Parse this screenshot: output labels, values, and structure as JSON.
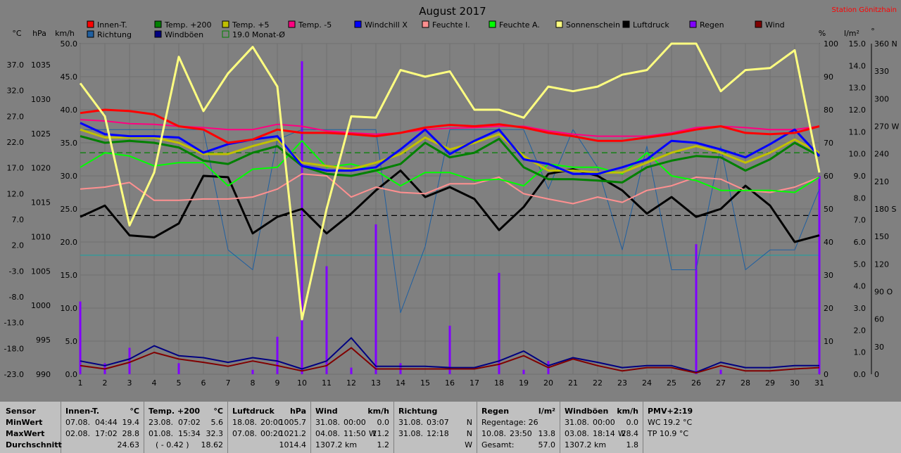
{
  "title": "August 2017",
  "station": "Station Gönitzhain",
  "units": {
    "temp": "°C",
    "press": "hPa",
    "speed": "km/h",
    "pct": "%",
    "rain": "l/m²",
    "deg": "°"
  },
  "legend": [
    {
      "label": "Innen-T.",
      "color": "#ff0000"
    },
    {
      "label": "Temp. +200",
      "color": "#008000"
    },
    {
      "label": "Temp. +5",
      "color": "#c0c000"
    },
    {
      "label": "Temp. -5",
      "color": "#ff0080"
    },
    {
      "label": "Windchill X",
      "color": "#0000ff"
    },
    {
      "label": "Feuchte I.",
      "color": "#ff9090"
    },
    {
      "label": "Feuchte A.",
      "color": "#00ff00"
    },
    {
      "label": "Sonnenschein",
      "color": "#ffff80"
    },
    {
      "label": "Luftdruck",
      "color": "#000000"
    },
    {
      "label": "Regen",
      "color": "#8000ff"
    },
    {
      "label": "Wind",
      "color": "#800000"
    },
    {
      "label": "Richtung",
      "color": "#1f5fa0"
    },
    {
      "label": "Windböen",
      "color": "#000080"
    },
    {
      "label": "19.0 Monat-Ø",
      "color": "#008000"
    }
  ],
  "axes": {
    "kmh_ticks": [
      "50.0",
      "45.0",
      "40.0",
      "35.0",
      "30.0",
      "25.0",
      "20.0",
      "15.0",
      "10.0",
      "5.0",
      "0.0"
    ],
    "temp_ticks": [
      "37.0",
      "32.0",
      "27.0",
      "22.0",
      "17.0",
      "12.0",
      "7.0",
      "2.0",
      "-3.0",
      "-8.0",
      "-13.0",
      "-18.0",
      "-23.0"
    ],
    "hpa_ticks": [
      "1035",
      "1030",
      "1025",
      "1020",
      "1015",
      "1010",
      "1005",
      "1000",
      "995",
      "990"
    ],
    "pct_ticks": [
      "100",
      "90",
      "80",
      "70",
      "60",
      "50",
      "40",
      "30",
      "20",
      "10",
      "0"
    ],
    "rain_ticks": [
      "15.0",
      "14.0",
      "13.0",
      "12.0",
      "11.0",
      "10.0",
      "9.0",
      "8.0",
      "7.0",
      "6.0",
      "5.0",
      "4.0",
      "3.0",
      "2.0",
      "1.0",
      "0.0"
    ],
    "dir_ticks": [
      "360 N",
      "330",
      "300",
      "270 W",
      "240",
      "210",
      "180 S",
      "150",
      "120",
      "90 O",
      "60",
      "30",
      "0"
    ],
    "x_ticks": [
      "1",
      "2",
      "3",
      "4",
      "5",
      "6",
      "7",
      "8",
      "9",
      "10",
      "11",
      "12",
      "13",
      "14",
      "15",
      "16",
      "17",
      "18",
      "19",
      "20",
      "21",
      "22",
      "23",
      "24",
      "25",
      "26",
      "27",
      "28",
      "29",
      "30",
      "31"
    ]
  },
  "chart_data": {
    "type": "line",
    "x": [
      1,
      2,
      3,
      4,
      5,
      6,
      7,
      8,
      9,
      10,
      11,
      12,
      13,
      14,
      15,
      16,
      17,
      18,
      19,
      20,
      21,
      22,
      23,
      24,
      25,
      26,
      27,
      28,
      29,
      30,
      31
    ],
    "series": [
      {
        "name": "Innen-T.",
        "unit": "km/h-scale",
        "values": [
          39.5,
          40,
          39.8,
          39.3,
          37.5,
          37,
          35,
          35.5,
          37,
          36.5,
          36.5,
          36.3,
          36,
          36.5,
          37.3,
          37.7,
          37.5,
          37.8,
          37.3,
          36.5,
          36,
          35.3,
          35.3,
          35.8,
          36.3,
          37,
          37.5,
          36.5,
          36.3,
          36.5,
          37.5
        ]
      },
      {
        "name": "Temp. +200",
        "values": [
          36,
          35,
          35.3,
          35,
          34.3,
          32.3,
          31.8,
          33.5,
          34.5,
          31.5,
          30.3,
          30,
          30.8,
          31.8,
          35,
          32.8,
          33.5,
          35.6,
          31.3,
          29.5,
          29.5,
          29.3,
          29,
          31.3,
          32.3,
          33,
          32.8,
          30.8,
          32.5,
          35,
          33
        ]
      },
      {
        "name": "Temp. +5",
        "values": [
          37,
          35.8,
          35.8,
          35.8,
          35,
          33.3,
          33.3,
          34.5,
          35.5,
          32,
          31.5,
          31,
          32,
          33.3,
          35.8,
          34,
          35,
          36.3,
          33,
          30.8,
          30.8,
          30.5,
          30.5,
          32,
          33.5,
          34.5,
          33.5,
          32,
          33.5,
          35.5,
          33.5
        ]
      },
      {
        "name": "Temp. -5",
        "values": [
          38.5,
          38.3,
          37.9,
          37.8,
          37.5,
          37.3,
          37,
          37,
          37.8,
          37.5,
          36.8,
          36.5,
          36.3,
          36.5,
          37,
          37.2,
          37.3,
          37.5,
          37.5,
          36.8,
          36.3,
          36,
          36,
          36,
          36.5,
          37.3,
          37.5,
          37.3,
          37,
          37,
          37.5
        ]
      },
      {
        "name": "Windchill X",
        "values": [
          38,
          36.3,
          36,
          36,
          35.8,
          33.5,
          34.8,
          35.5,
          36,
          31.5,
          30.8,
          30.8,
          31.3,
          34,
          37,
          33.3,
          35.3,
          37,
          32.5,
          31.8,
          30.3,
          30.3,
          31.3,
          32.5,
          35.3,
          35,
          34,
          32.8,
          34.8,
          37,
          33
        ]
      },
      {
        "name": "Feuchte I.",
        "values": [
          28,
          28.3,
          29,
          26.3,
          26.3,
          26.5,
          26.5,
          26.8,
          28,
          30.3,
          30,
          26.8,
          28.3,
          27.5,
          27.3,
          28.8,
          28.8,
          29.8,
          27.3,
          26.5,
          25.8,
          26.8,
          26,
          27.8,
          28.5,
          29.8,
          29.5,
          27.8,
          27.5,
          28.3,
          29.8
        ]
      },
      {
        "name": "Feuchte A.",
        "values": [
          31.3,
          33.5,
          33,
          31.5,
          32,
          32,
          28.5,
          31,
          31.3,
          35.3,
          31.3,
          31.8,
          30.8,
          28.5,
          30.5,
          30.5,
          29.3,
          29.5,
          28.5,
          31.8,
          31.3,
          31.3,
          30.3,
          33.5,
          30,
          29.3,
          27.8,
          27.8,
          27.8,
          27.5,
          29.8
        ]
      },
      {
        "name": "Sonnenschein",
        "values": [
          44,
          39,
          22.5,
          30.5,
          48,
          39.8,
          45.5,
          49.5,
          43.5,
          8.3,
          25,
          39,
          38.8,
          46,
          45,
          45.8,
          40,
          40,
          38.8,
          43.5,
          42.8,
          43.5,
          45.3,
          46,
          50,
          50,
          42.8,
          46,
          46.3,
          49,
          30.5
        ]
      },
      {
        "name": "Luftdruck",
        "values": [
          23.8,
          25.5,
          21,
          20.7,
          22.8,
          30,
          29.8,
          21.3,
          23.8,
          25,
          21.3,
          24.3,
          27.8,
          30.8,
          26.8,
          28.3,
          26.5,
          21.8,
          25.3,
          30.3,
          31,
          30,
          27.8,
          24.3,
          26.8,
          23.8,
          25,
          28.5,
          25.5,
          20,
          21
        ]
      },
      {
        "name": "Richtung",
        "values": [
          37,
          37,
          37,
          37,
          37,
          37,
          18.8,
          15.8,
          35.5,
          37,
          37,
          37,
          37,
          9.3,
          19.3,
          37,
          37,
          37,
          37,
          28,
          37,
          31.3,
          18.8,
          34.5,
          15.8,
          15.8,
          34.5,
          15.8,
          18.8,
          18.8,
          28
        ]
      },
      {
        "name": "Windböen",
        "values": [
          2,
          1.3,
          2.3,
          4.3,
          2.8,
          2.5,
          1.8,
          2.5,
          2,
          0.8,
          2,
          5.5,
          1.2,
          1.2,
          1.2,
          1,
          1,
          2,
          3.5,
          1.3,
          2.5,
          1.8,
          1,
          1.3,
          1.3,
          0.3,
          1.8,
          1,
          1,
          1.3,
          1.3
        ]
      },
      {
        "name": "Wind",
        "values": [
          1.3,
          0.8,
          1.8,
          3.3,
          2.3,
          1.8,
          1.2,
          2,
          1.3,
          0.5,
          1.3,
          4,
          0.8,
          0.8,
          0.8,
          0.8,
          0.8,
          1.5,
          2.8,
          1,
          2.3,
          1.3,
          0.5,
          1,
          1,
          0.2,
          1.3,
          0.5,
          0.5,
          0.8,
          1
        ]
      },
      {
        "name": "Regen",
        "unit": "l/m²",
        "values": [
          3.3,
          0.5,
          1.2,
          0,
          0.5,
          0,
          0,
          0.2,
          1.7,
          14.2,
          4.9,
          0.3,
          6.8,
          0.5,
          0,
          2.2,
          0,
          4.6,
          0.2,
          0.6,
          0,
          0,
          0,
          0,
          0,
          5.9,
          0.2,
          0,
          0,
          0,
          9
        ]
      }
    ],
    "reference_lines": [
      {
        "name": "19.0 Monat-Ø",
        "value": 33.5,
        "color": "#008000"
      },
      {
        "name": "Luftdruck-Mittel",
        "value": 24,
        "color": "#000000"
      },
      {
        "name": "cyan",
        "value": 18,
        "color": "#20a0a0"
      }
    ],
    "ylim": [
      0,
      50
    ],
    "grid": true,
    "legend_position": "top"
  },
  "summary": {
    "sensor": {
      "h": "Sensor",
      "r1": "MinWert",
      "r2": "MaxWert",
      "r3": "Durchschnitt"
    },
    "innen": {
      "h": "Innen-T.",
      "u": "°C",
      "r1a": "07.08.",
      "r1b": "04:44",
      "r1c": "19.4",
      "r2a": "02.08.",
      "r2b": "17:02",
      "r2c": "28.8",
      "r3c": "24.63"
    },
    "temp": {
      "h": "Temp. +200",
      "u": "°C",
      "r1a": "23.08.",
      "r1b": "07:02",
      "r1c": "5.6",
      "r2a": "01.08.",
      "r2b": "15:34",
      "r2c": "32.3",
      "r3a": "( - 0.42 )",
      "r3c": "18.62"
    },
    "druck": {
      "h": "Luftdruck",
      "u": "hPa",
      "r1a": "18.08.",
      "r1b": "20:00",
      "r1c": "1005.7",
      "r2a": "07.08.",
      "r2b": "00:20",
      "r2c": "1021.2",
      "r3c": "1014.4"
    },
    "wind": {
      "h": "Wind",
      "u": "km/h",
      "r1a": "31.08.",
      "r1b": "00:00",
      "r1c": "0.0",
      "r2a": "04.08.",
      "r2b": "11:50",
      "r2d": "W",
      "r2c": "11.2",
      "r3a": "1307.2 km",
      "r3c": "1.2"
    },
    "richtung": {
      "h": "Richtung",
      "r1a": "31.08.",
      "r1b": "03:07",
      "r1c": "N",
      "r2a": "31.08.",
      "r2b": "12:18",
      "r2c": "N",
      "r3c": "W"
    },
    "regen": {
      "h": "Regen",
      "u": "l/m²",
      "r1a": "Regentage: 26",
      "r2a": "10.08.",
      "r2b": "23:50",
      "r2c": "13.8",
      "r3a": "Gesamt:",
      "r3c": "57.0"
    },
    "boeen": {
      "h": "Windböen",
      "u": "km/h",
      "r1a": "31.08.",
      "r1b": "00:00",
      "r1c": "0.0",
      "r2a": "03.08.",
      "r2b": "18:14",
      "r2d": "W",
      "r2c": "28.4",
      "r3a": "1307.2 km",
      "r3c": "1.8"
    },
    "pmv": {
      "h": "PMV+2:19",
      "r1a": "WC 19.2 °C",
      "r2a": "TP 10.9 °C"
    }
  }
}
